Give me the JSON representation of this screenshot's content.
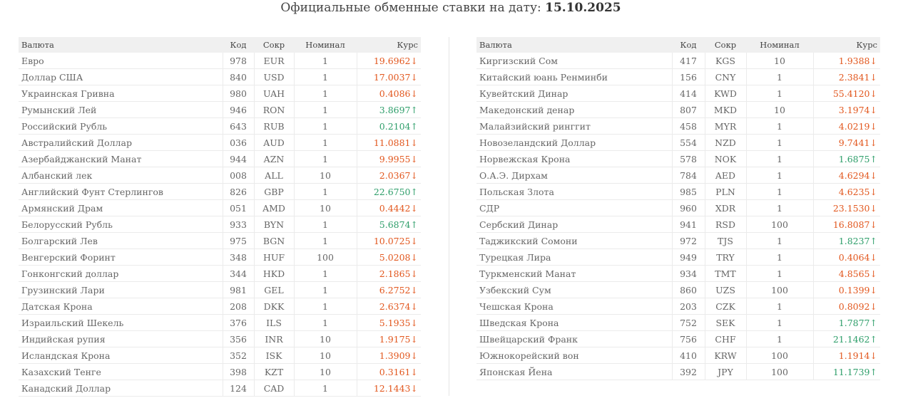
{
  "header": {
    "title_prefix": "Официальные обменные ставки на дату:",
    "date": "15.10.2025"
  },
  "columns": {
    "name": "Валюта",
    "code": "Код",
    "abbr": "Сокр",
    "nominal": "Номинал",
    "rate": "Курс"
  },
  "colors": {
    "up": "#2e9e6a",
    "down": "#e2571e"
  },
  "left_table": [
    {
      "name": "Евро",
      "code": "978",
      "abbr": "EUR",
      "nominal": "1",
      "rate": "19.6962",
      "trend": "down"
    },
    {
      "name": "Доллар США",
      "code": "840",
      "abbr": "USD",
      "nominal": "1",
      "rate": "17.0037",
      "trend": "down"
    },
    {
      "name": "Украинская Гривна",
      "code": "980",
      "abbr": "UAH",
      "nominal": "1",
      "rate": "0.4086",
      "trend": "down"
    },
    {
      "name": "Румынский Лей",
      "code": "946",
      "abbr": "RON",
      "nominal": "1",
      "rate": "3.8697",
      "trend": "up"
    },
    {
      "name": "Российский Рубль",
      "code": "643",
      "abbr": "RUB",
      "nominal": "1",
      "rate": "0.2104",
      "trend": "up"
    },
    {
      "name": "Австралийский Доллар",
      "code": "036",
      "abbr": "AUD",
      "nominal": "1",
      "rate": "11.0881",
      "trend": "down"
    },
    {
      "name": "Азербайджанский Манат",
      "code": "944",
      "abbr": "AZN",
      "nominal": "1",
      "rate": "9.9955",
      "trend": "down"
    },
    {
      "name": "Албанский лек",
      "code": "008",
      "abbr": "ALL",
      "nominal": "10",
      "rate": "2.0367",
      "trend": "down"
    },
    {
      "name": "Английский Фунт Стерлингов",
      "code": "826",
      "abbr": "GBP",
      "nominal": "1",
      "rate": "22.6750",
      "trend": "up"
    },
    {
      "name": "Армянский Драм",
      "code": "051",
      "abbr": "AMD",
      "nominal": "10",
      "rate": "0.4442",
      "trend": "down"
    },
    {
      "name": "Белорусский Рубль",
      "code": "933",
      "abbr": "BYN",
      "nominal": "1",
      "rate": "5.6874",
      "trend": "up"
    },
    {
      "name": "Болгарский Лев",
      "code": "975",
      "abbr": "BGN",
      "nominal": "1",
      "rate": "10.0725",
      "trend": "down"
    },
    {
      "name": "Венгерский Форинт",
      "code": "348",
      "abbr": "HUF",
      "nominal": "100",
      "rate": "5.0208",
      "trend": "down"
    },
    {
      "name": "Гонконгский доллар",
      "code": "344",
      "abbr": "HKD",
      "nominal": "1",
      "rate": "2.1865",
      "trend": "down"
    },
    {
      "name": "Грузинский Лари",
      "code": "981",
      "abbr": "GEL",
      "nominal": "1",
      "rate": "6.2752",
      "trend": "down"
    },
    {
      "name": "Датская Крона",
      "code": "208",
      "abbr": "DKK",
      "nominal": "1",
      "rate": "2.6374",
      "trend": "down"
    },
    {
      "name": "Израильский Шекель",
      "code": "376",
      "abbr": "ILS",
      "nominal": "1",
      "rate": "5.1935",
      "trend": "down"
    },
    {
      "name": "Индийская рупия",
      "code": "356",
      "abbr": "INR",
      "nominal": "10",
      "rate": "1.9175",
      "trend": "down"
    },
    {
      "name": "Исландская Крона",
      "code": "352",
      "abbr": "ISK",
      "nominal": "10",
      "rate": "1.3909",
      "trend": "down"
    },
    {
      "name": "Казахский Тенге",
      "code": "398",
      "abbr": "KZT",
      "nominal": "10",
      "rate": "0.3161",
      "trend": "down"
    },
    {
      "name": "Канадский Доллар",
      "code": "124",
      "abbr": "CAD",
      "nominal": "1",
      "rate": "12.1443",
      "trend": "down"
    }
  ],
  "right_table": [
    {
      "name": "Киргизский Сом",
      "code": "417",
      "abbr": "KGS",
      "nominal": "10",
      "rate": "1.9388",
      "trend": "down"
    },
    {
      "name": "Китайский юань Ренминби",
      "code": "156",
      "abbr": "CNY",
      "nominal": "1",
      "rate": "2.3841",
      "trend": "down"
    },
    {
      "name": "Кувейтский Динар",
      "code": "414",
      "abbr": "KWD",
      "nominal": "1",
      "rate": "55.4120",
      "trend": "down"
    },
    {
      "name": "Македонский денар",
      "code": "807",
      "abbr": "MKD",
      "nominal": "10",
      "rate": "3.1974",
      "trend": "down"
    },
    {
      "name": "Малайзийский ринггит",
      "code": "458",
      "abbr": "MYR",
      "nominal": "1",
      "rate": "4.0219",
      "trend": "down"
    },
    {
      "name": "Новозеландский Доллар",
      "code": "554",
      "abbr": "NZD",
      "nominal": "1",
      "rate": "9.7441",
      "trend": "down"
    },
    {
      "name": "Норвежская Крона",
      "code": "578",
      "abbr": "NOK",
      "nominal": "1",
      "rate": "1.6875",
      "trend": "up"
    },
    {
      "name": "О.А.Э. Дирхам",
      "code": "784",
      "abbr": "AED",
      "nominal": "1",
      "rate": "4.6294",
      "trend": "down"
    },
    {
      "name": "Польская Злота",
      "code": "985",
      "abbr": "PLN",
      "nominal": "1",
      "rate": "4.6235",
      "trend": "down"
    },
    {
      "name": "СДР",
      "code": "960",
      "abbr": "XDR",
      "nominal": "1",
      "rate": "23.1530",
      "trend": "down"
    },
    {
      "name": "Сербский Динар",
      "code": "941",
      "abbr": "RSD",
      "nominal": "100",
      "rate": "16.8087",
      "trend": "down"
    },
    {
      "name": "Таджикский Сомони",
      "code": "972",
      "abbr": "TJS",
      "nominal": "1",
      "rate": "1.8237",
      "trend": "up"
    },
    {
      "name": "Турецкая Лира",
      "code": "949",
      "abbr": "TRY",
      "nominal": "1",
      "rate": "0.4064",
      "trend": "down"
    },
    {
      "name": "Туркменский Манат",
      "code": "934",
      "abbr": "TMT",
      "nominal": "1",
      "rate": "4.8565",
      "trend": "down"
    },
    {
      "name": "Узбекский Сум",
      "code": "860",
      "abbr": "UZS",
      "nominal": "100",
      "rate": "0.1399",
      "trend": "down"
    },
    {
      "name": "Чешская Крона",
      "code": "203",
      "abbr": "CZK",
      "nominal": "1",
      "rate": "0.8092",
      "trend": "down"
    },
    {
      "name": "Шведская Крона",
      "code": "752",
      "abbr": "SEK",
      "nominal": "1",
      "rate": "1.7877",
      "trend": "up"
    },
    {
      "name": "Швейцарский Франк",
      "code": "756",
      "abbr": "CHF",
      "nominal": "1",
      "rate": "21.1462",
      "trend": "up"
    },
    {
      "name": "Южнокорейский вон",
      "code": "410",
      "abbr": "KRW",
      "nominal": "100",
      "rate": "1.1914",
      "trend": "down"
    },
    {
      "name": "Японская Йена",
      "code": "392",
      "abbr": "JPY",
      "nominal": "100",
      "rate": "11.1739",
      "trend": "up"
    }
  ]
}
